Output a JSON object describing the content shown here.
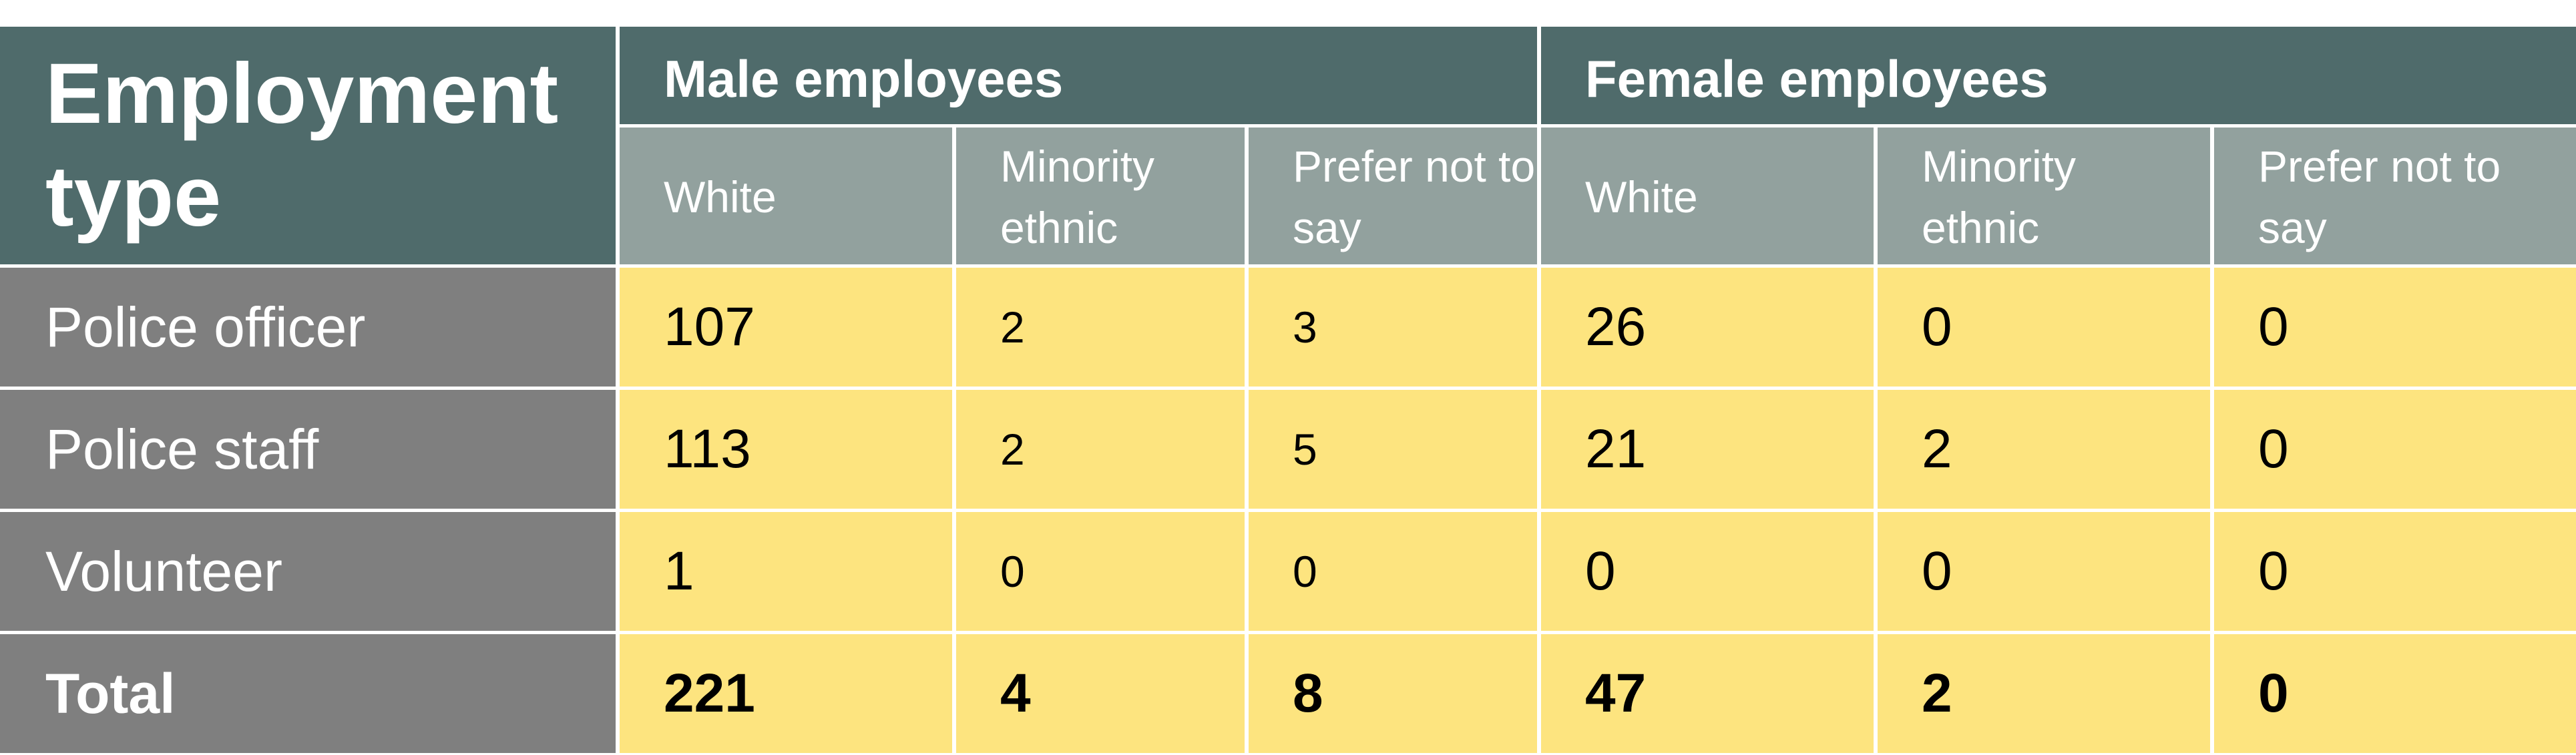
{
  "table": {
    "corner_label": "Employment type",
    "groups": [
      "Male employees",
      "Female employees"
    ],
    "subheaders": [
      "White",
      "Minority ethnic",
      "Prefer not to say",
      "White",
      "Minority ethnic",
      "Prefer not to say"
    ],
    "rows": [
      {
        "label": "Police officer",
        "values": [
          "107",
          "2",
          "3",
          "26",
          "0",
          "0"
        ]
      },
      {
        "label": "Police staff",
        "values": [
          "113",
          "2",
          "5",
          "21",
          "2",
          "0"
        ]
      },
      {
        "label": "Volunteer",
        "values": [
          "1",
          "0",
          "0",
          "0",
          "0",
          "0"
        ]
      },
      {
        "label": "Total",
        "values": [
          "221",
          "4",
          "8",
          "47",
          "2",
          "0"
        ]
      }
    ]
  },
  "colors": {
    "header_dark": "#4f6b6b",
    "header_sub": "#92a19e",
    "row_label": "#7f7f7f",
    "data_cell": "#fde47f"
  }
}
